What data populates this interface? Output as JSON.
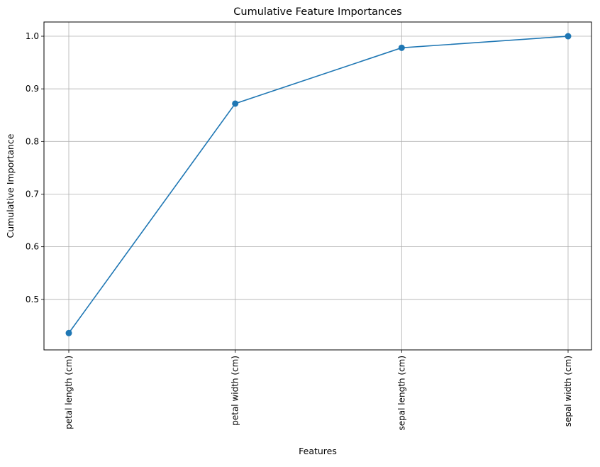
{
  "chart_data": {
    "type": "line",
    "title": "Cumulative Feature Importances",
    "xlabel": "Features",
    "ylabel": "Cumulative Importance",
    "categories": [
      "petal length (cm)",
      "petal width (cm)",
      "sepal length (cm)",
      "sepal width (cm)"
    ],
    "series": [
      {
        "values": [
          0.436,
          0.872,
          0.978,
          1.0
        ]
      }
    ],
    "yticks": [
      "0.5",
      "0.6",
      "0.7",
      "0.8",
      "0.9",
      "1.0"
    ],
    "ylim": [
      0.404,
      1.027
    ],
    "grid": true,
    "line_color": "#1f77b4",
    "marker": "circle"
  }
}
